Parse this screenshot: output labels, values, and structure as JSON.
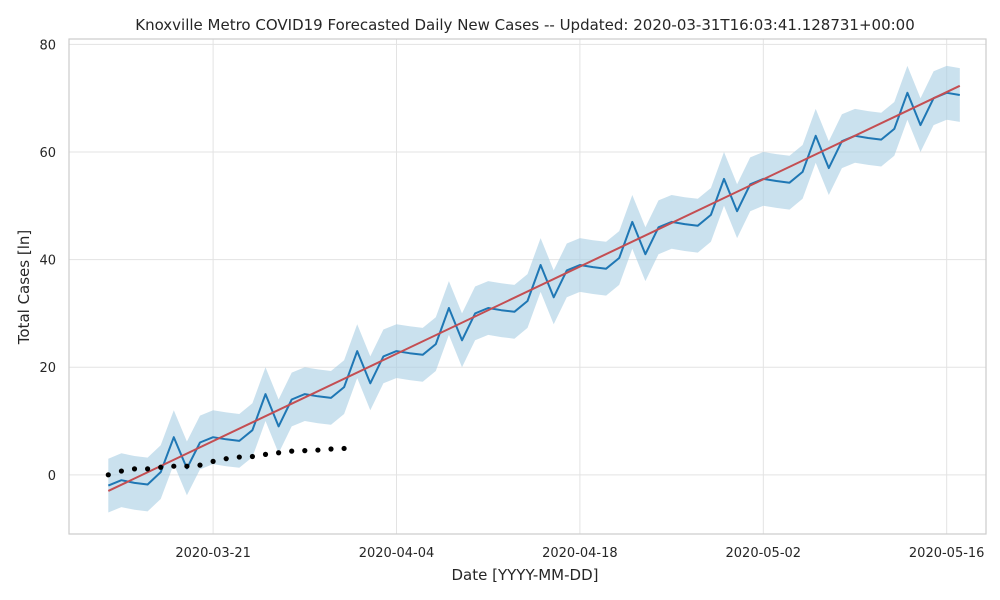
{
  "chart_data": {
    "type": "line",
    "title": "Knoxville Metro COVID19 Forecasted Daily New Cases -- Updated: 2020-03-31T16:03:41.128731+00:00",
    "xlabel": "Date [YYYY-MM-DD]",
    "ylabel": "Total Cases [ln]",
    "x_ticks": [
      "2020-03-21",
      "2020-04-04",
      "2020-04-18",
      "2020-05-02",
      "2020-05-16"
    ],
    "y_ticks": [
      0,
      20,
      40,
      60,
      80
    ],
    "xlim": [
      "2020-03-10",
      "2020-05-19"
    ],
    "ylim": [
      -11,
      81
    ],
    "grid": true,
    "colors": {
      "forecast": "#1f77b4",
      "band": "#a6cde2",
      "trend": "#c44e52",
      "observed": "#000000"
    },
    "series": [
      {
        "type": "scatter",
        "x": [
          "2020-03-13",
          "2020-03-14",
          "2020-03-15",
          "2020-03-16",
          "2020-03-17",
          "2020-03-18",
          "2020-03-19",
          "2020-03-20",
          "2020-03-21",
          "2020-03-22",
          "2020-03-23",
          "2020-03-24",
          "2020-03-25",
          "2020-03-26",
          "2020-03-27",
          "2020-03-28",
          "2020-03-29",
          "2020-03-30",
          "2020-03-31"
        ],
        "y": [
          0,
          0.7,
          1.1,
          1.1,
          1.4,
          1.6,
          1.6,
          1.8,
          2.5,
          3.0,
          3.3,
          3.4,
          3.8,
          4.1,
          4.4,
          4.5,
          4.6,
          4.8,
          4.9
        ]
      },
      {
        "type": "line",
        "x": [
          "2020-03-13",
          "2020-03-14",
          "2020-03-15",
          "2020-03-16",
          "2020-03-17",
          "2020-03-18",
          "2020-03-19",
          "2020-03-20",
          "2020-03-21",
          "2020-03-22",
          "2020-03-23",
          "2020-03-24",
          "2020-03-25",
          "2020-03-26",
          "2020-03-27",
          "2020-03-28",
          "2020-03-29",
          "2020-03-30",
          "2020-03-31",
          "2020-04-01",
          "2020-04-02",
          "2020-04-03",
          "2020-04-04",
          "2020-04-05",
          "2020-04-06",
          "2020-04-07",
          "2020-04-08",
          "2020-04-09",
          "2020-04-10",
          "2020-04-11",
          "2020-04-12",
          "2020-04-13",
          "2020-04-14",
          "2020-04-15",
          "2020-04-16",
          "2020-04-17",
          "2020-04-18",
          "2020-04-19",
          "2020-04-20",
          "2020-04-21",
          "2020-04-22",
          "2020-04-23",
          "2020-04-24",
          "2020-04-25",
          "2020-04-26",
          "2020-04-27",
          "2020-04-28",
          "2020-04-29",
          "2020-04-30",
          "2020-05-01",
          "2020-05-02",
          "2020-05-03",
          "2020-05-04",
          "2020-05-05",
          "2020-05-06",
          "2020-05-07",
          "2020-05-08",
          "2020-05-09",
          "2020-05-10",
          "2020-05-11",
          "2020-05-12",
          "2020-05-13",
          "2020-05-14",
          "2020-05-15",
          "2020-05-16",
          "2020-05-17"
        ],
        "y": [
          -2,
          -1,
          -1.5,
          -1.8,
          0.5,
          7,
          1.2,
          6,
          7,
          6.6,
          6.3,
          8.3,
          15,
          9,
          14,
          15,
          14.6,
          14.3,
          16.3,
          23,
          17,
          22,
          23,
          22.6,
          22.3,
          24.3,
          31,
          25,
          30,
          31,
          30.6,
          30.3,
          32.3,
          39,
          33,
          38,
          39,
          38.6,
          38.3,
          40.3,
          47,
          41,
          46,
          47,
          46.6,
          46.3,
          48.3,
          55,
          49,
          54,
          55,
          54.6,
          54.3,
          56.3,
          63,
          57,
          62,
          63,
          62.6,
          62.3,
          64.3,
          71,
          65,
          70,
          71,
          70.6
        ]
      },
      {
        "type": "area",
        "upper": [
          3,
          4,
          3.5,
          3.2,
          5.5,
          12,
          6.2,
          11,
          12,
          11.6,
          11.3,
          13.3,
          20,
          14,
          19,
          20,
          19.6,
          19.3,
          21.3,
          28,
          22,
          27,
          28,
          27.6,
          27.3,
          29.3,
          36,
          30,
          35,
          36,
          35.6,
          35.3,
          37.3,
          44,
          38,
          43,
          44,
          43.6,
          43.3,
          45.3,
          52,
          46,
          51,
          52,
          51.6,
          51.3,
          53.3,
          60,
          54,
          59,
          60,
          59.6,
          59.3,
          61.3,
          68,
          62,
          67,
          68,
          67.6,
          67.3,
          69.3,
          76,
          70,
          75,
          76,
          75.6
        ],
        "lower": [
          -7,
          -6,
          -6.5,
          -6.8,
          -4.5,
          2,
          -3.8,
          1,
          2,
          1.6,
          1.3,
          3.3,
          10,
          4,
          9,
          10,
          9.6,
          9.3,
          11.3,
          18,
          12,
          17,
          18,
          17.6,
          17.3,
          19.3,
          26,
          20,
          25,
          26,
          25.6,
          25.3,
          27.3,
          34,
          28,
          33,
          34,
          33.6,
          33.3,
          35.3,
          42,
          36,
          41,
          42,
          41.6,
          41.3,
          43.3,
          50,
          44,
          49,
          50,
          49.6,
          49.3,
          51.3,
          58,
          52,
          57,
          58,
          57.6,
          57.3,
          59.3,
          66,
          60,
          65,
          66,
          65.6
        ]
      },
      {
        "type": "line",
        "x": [
          "2020-03-13",
          "2020-05-17"
        ],
        "y": [
          -3,
          72.3
        ]
      }
    ]
  }
}
